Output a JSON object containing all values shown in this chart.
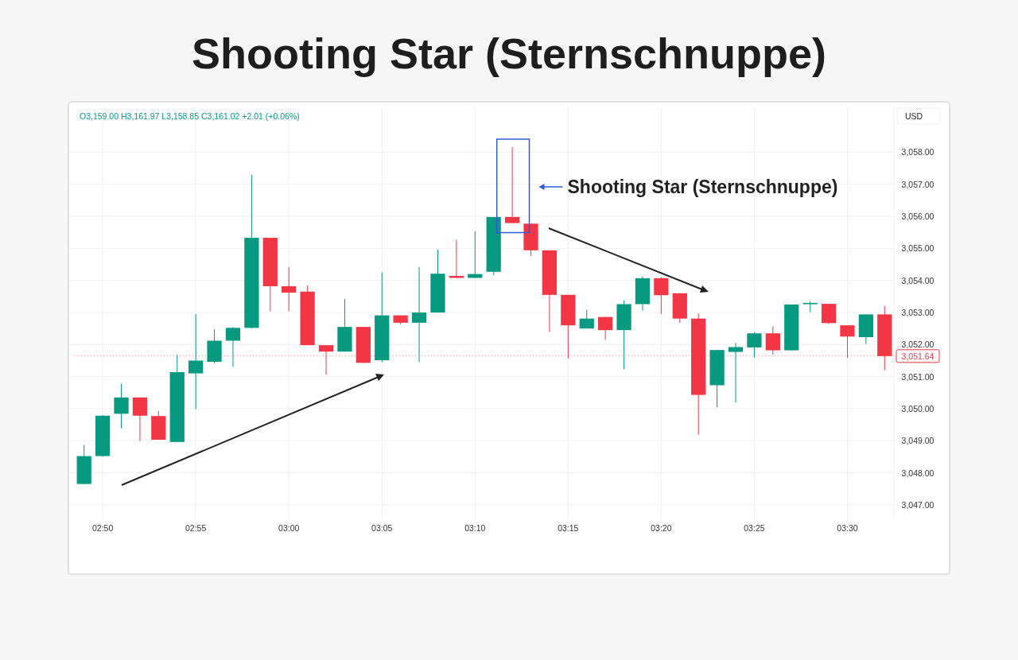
{
  "chart_data": {
    "type": "candlestick",
    "title": "Shooting Star (Sternschnuppe)",
    "ylabel": "USD",
    "categories": [
      null,
      "02:50",
      null,
      null,
      null,
      null,
      "02:55",
      null,
      null,
      null,
      null,
      "03:00",
      null,
      null,
      null,
      null,
      "03:05",
      null,
      null,
      null,
      null,
      "03:10",
      null,
      null,
      null,
      null,
      "03:15",
      null,
      null,
      null,
      null,
      "03:20",
      null,
      null,
      null,
      null,
      "03:25",
      null,
      null,
      null,
      null,
      "03:30",
      null,
      null
    ],
    "ohlc": [
      [
        3047.65,
        3048.87,
        3047.65,
        3048.52
      ],
      [
        3048.52,
        3049.8,
        3048.5,
        3049.78
      ],
      [
        3049.84,
        3050.78,
        3049.39,
        3050.35
      ],
      [
        3050.35,
        3050.35,
        3048.99,
        3049.78
      ],
      [
        3049.77,
        3049.93,
        3049.03,
        3049.03
      ],
      [
        3048.96,
        3051.69,
        3048.96,
        3051.14
      ],
      [
        3051.1,
        3052.95,
        3049.98,
        3051.5
      ],
      [
        3051.46,
        3052.48,
        3051.42,
        3052.12
      ],
      [
        3052.12,
        3052.55,
        3051.3,
        3052.52
      ],
      [
        3052.52,
        3057.3,
        3052.5,
        3055.33
      ],
      [
        3055.33,
        3055.33,
        3053.04,
        3053.82
      ],
      [
        3053.82,
        3054.42,
        3053.04,
        3053.62
      ],
      [
        3053.65,
        3053.84,
        3051.98,
        3051.98
      ],
      [
        3051.98,
        3051.98,
        3051.06,
        3051.78
      ],
      [
        3051.78,
        3053.43,
        3051.78,
        3052.55
      ],
      [
        3052.55,
        3052.55,
        3051.43,
        3051.43
      ],
      [
        3051.51,
        3054.25,
        3051.45,
        3052.91
      ],
      [
        3052.91,
        3052.91,
        3052.62,
        3052.68
      ],
      [
        3052.68,
        3054.42,
        3051.45,
        3053.0
      ],
      [
        3053.0,
        3054.96,
        3053.0,
        3054.21
      ],
      [
        3054.14,
        3055.27,
        3054.08,
        3054.08
      ],
      [
        3054.08,
        3055.53,
        3054.08,
        3054.2
      ],
      [
        3054.27,
        3055.98,
        3054.17,
        3055.98
      ],
      [
        3055.98,
        3058.16,
        3055.79,
        3055.79
      ],
      [
        3055.77,
        3055.77,
        3054.76,
        3054.94
      ],
      [
        3054.94,
        3054.94,
        3052.39,
        3053.55
      ],
      [
        3053.55,
        3053.55,
        3051.57,
        3052.6
      ],
      [
        3052.5,
        3053.09,
        3052.5,
        3052.81
      ],
      [
        3052.86,
        3052.86,
        3052.14,
        3052.45
      ],
      [
        3052.45,
        3053.38,
        3051.23,
        3053.26
      ],
      [
        3053.26,
        3054.13,
        3053.06,
        3054.07
      ],
      [
        3054.07,
        3054.1,
        3052.95,
        3053.54
      ],
      [
        3053.6,
        3053.6,
        3052.68,
        3052.81
      ],
      [
        3052.81,
        3052.97,
        3049.19,
        3050.43
      ],
      [
        3050.73,
        3051.83,
        3050.04,
        3051.83
      ],
      [
        3051.77,
        3052.05,
        3050.19,
        3051.92
      ],
      [
        3051.91,
        3052.39,
        3051.59,
        3052.35
      ],
      [
        3052.35,
        3052.57,
        3051.69,
        3051.82
      ],
      [
        3051.82,
        3053.25,
        3051.82,
        3053.25
      ],
      [
        3053.26,
        3053.35,
        3053.01,
        3053.3
      ],
      [
        3053.27,
        3053.27,
        3052.64,
        3052.67
      ],
      [
        3052.6,
        3052.6,
        3051.58,
        3052.25
      ],
      [
        3052.23,
        3052.94,
        3052.02,
        3052.94
      ],
      [
        3052.94,
        3053.2,
        3051.2,
        3051.64
      ]
    ],
    "colors": [
      "#089981",
      "#089981",
      "#089981",
      "#f23645",
      "#f23645",
      "#089981",
      "#089981",
      "#089981",
      "#089981",
      "#089981",
      "#f23645",
      "#f23645",
      "#f23645",
      "#f23645",
      "#089981",
      "#f23645",
      "#089981",
      "#f23645",
      "#089981",
      "#089981",
      "#f23645",
      "#089981",
      "#089981",
      "#f23645",
      "#f23645",
      "#f23645",
      "#f23645",
      "#089981",
      "#f23645",
      "#089981",
      "#089981",
      "#f23645",
      "#f23645",
      "#f23645",
      "#089981",
      "#089981",
      "#089981",
      "#f23645",
      "#089981",
      "#089981",
      "#f23645",
      "#f23645",
      "#089981",
      "#f23645"
    ],
    "ylim": [
      3046.5,
      3059.4
    ],
    "yticks": [
      {
        "value": 3047,
        "label": "3,047.00"
      },
      {
        "value": 3048,
        "label": "3,048.00"
      },
      {
        "value": 3049,
        "label": "3,049.00"
      },
      {
        "value": 3050,
        "label": "3,050.00"
      },
      {
        "value": 3051,
        "label": "3,051.00"
      },
      {
        "value": 3052,
        "label": "3,052.00"
      },
      {
        "value": 3053,
        "label": "3,053.00"
      },
      {
        "value": 3054,
        "label": "3,054.00"
      },
      {
        "value": 3055,
        "label": "3,055.00"
      },
      {
        "value": 3056,
        "label": "3,056.00"
      },
      {
        "value": 3057,
        "label": "3,057.00"
      },
      {
        "value": 3058,
        "label": "3,058.00"
      }
    ],
    "grid": true,
    "ref_lines": [
      {
        "axis": "y",
        "value": 3051.64,
        "label": "3,051.64",
        "color": "#f23645",
        "line_style": "dotted"
      }
    ],
    "annotations": [
      "O3,159.00 H3,161.97 L3,158.85 C3,161.02 +2.01 (+0.06%)",
      "Shooting Star (Sternschnuppe)"
    ]
  }
}
